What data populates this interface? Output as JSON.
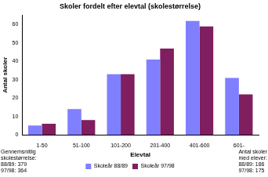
{
  "chart_data": {
    "type": "bar",
    "title": "Skoler fordelt efter elevtal (skolestørrelse)",
    "x_label": "Elevtal",
    "y_label": "Antal skoler",
    "categories": [
      "1-50",
      "51-100",
      "101-200",
      "201-400",
      "401-600",
      "601-"
    ],
    "series": [
      {
        "name": "Skoleår 88/89",
        "color": "#8080ff",
        "values": [
          5,
          14,
          33,
          41,
          62,
          31
        ]
      },
      {
        "name": "Skoleår 97/98",
        "color": "#7f1f5f",
        "values": [
          6,
          8,
          33,
          47,
          59,
          22
        ]
      }
    ],
    "ylim": [
      0,
      65
    ],
    "yticks": [
      0,
      10,
      20,
      30,
      40,
      50,
      60
    ],
    "grid": false,
    "legend": "bottom",
    "annotations": [
      [
        "Gennemsnitlig",
        "skolestørrelse:",
        "88/89: 379",
        "97/98: 364"
      ],
      [
        "Antal skoler",
        "med elever:",
        "88/89: 186",
        "97/98: 175"
      ]
    ]
  }
}
